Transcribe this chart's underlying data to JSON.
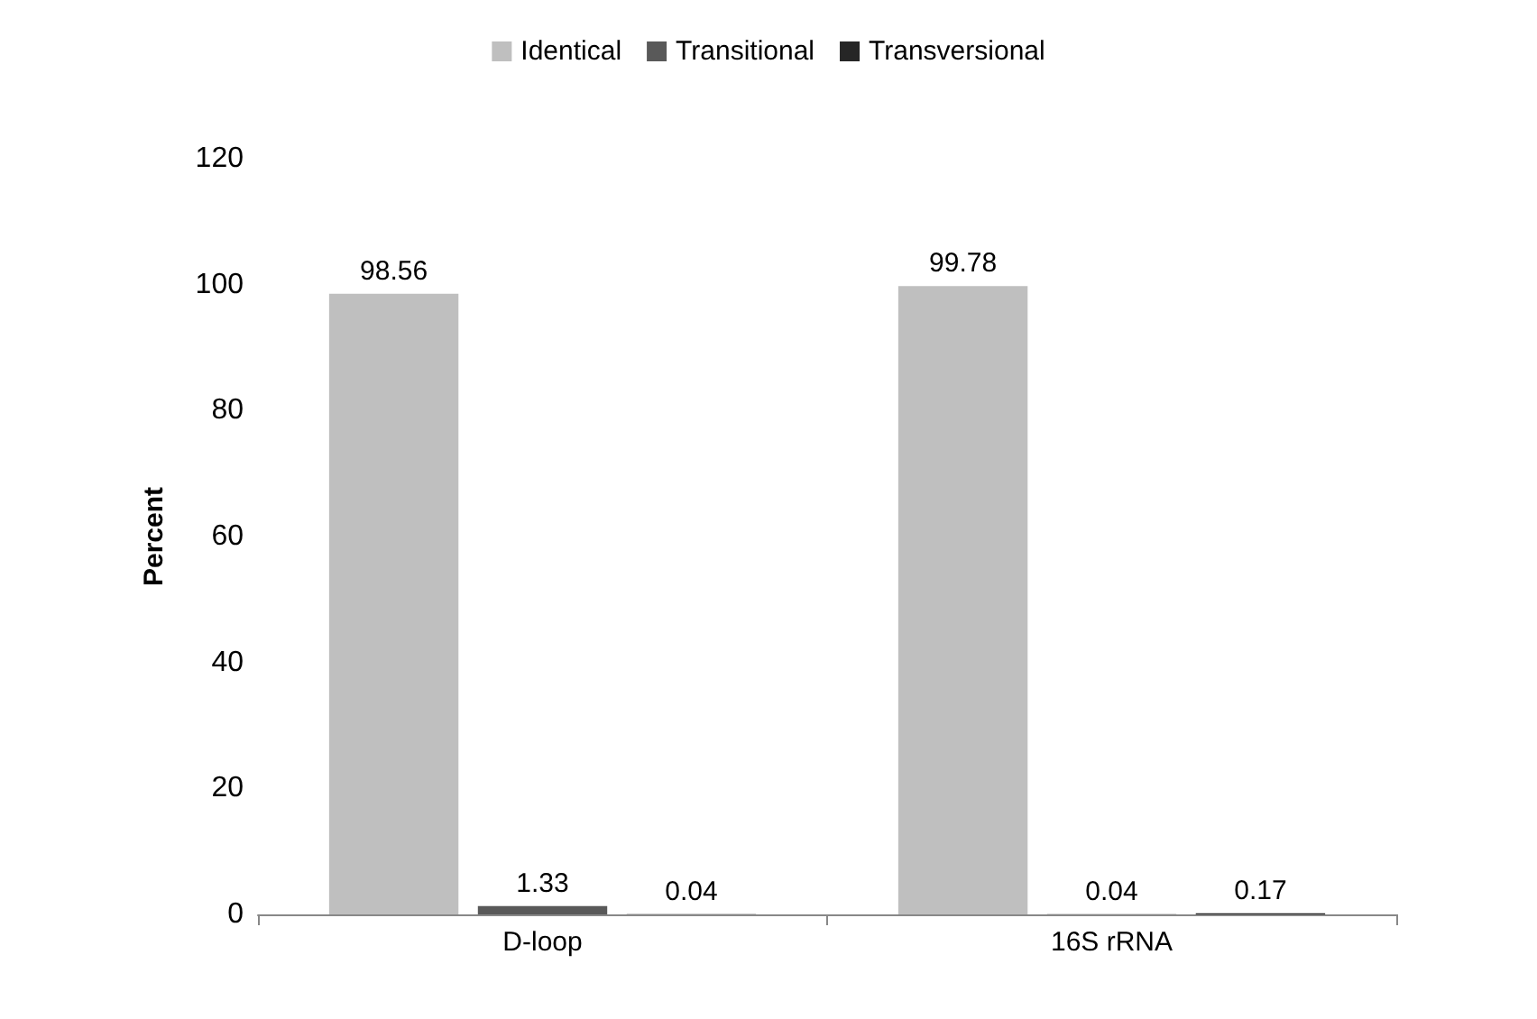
{
  "chart_data": {
    "type": "bar",
    "ylabel": "Percent",
    "categories": [
      "D-loop",
      "16S rRNA"
    ],
    "series": [
      {
        "name": "Identical",
        "color": "#bfbfbf",
        "values": [
          98.56,
          99.78
        ]
      },
      {
        "name": "Transitional",
        "color": "#595959",
        "values": [
          1.33,
          0.04
        ]
      },
      {
        "name": "Transversional",
        "color": "#262626",
        "values": [
          0.04,
          0.17
        ]
      }
    ],
    "ylim": [
      0,
      120
    ],
    "yticks": [
      0,
      20,
      40,
      60,
      80,
      100,
      120
    ],
    "grid": false,
    "legend": "top",
    "data_labels": true
  }
}
